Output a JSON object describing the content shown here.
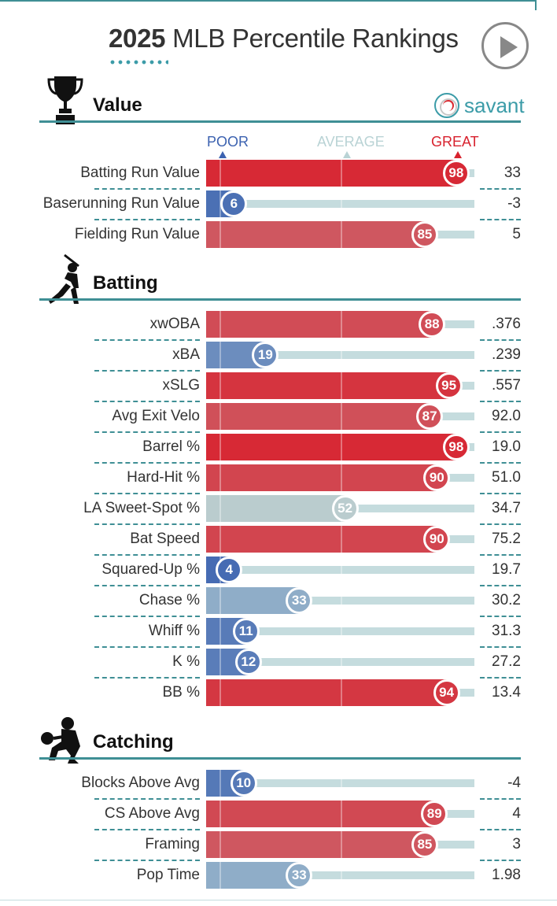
{
  "header": {
    "year": "2025",
    "title": "MLB Percentile Rankings",
    "play_icon": "play-icon"
  },
  "brand": {
    "name": "savant",
    "icon": "baseball-icon"
  },
  "legend": {
    "poor": "POOR",
    "average": "AVERAGE",
    "great": "GREAT"
  },
  "colors": {
    "great": "#d8222e",
    "average": "#b9d3d5",
    "poor": "#3c62b0",
    "track": "#c5dcde",
    "accent": "#3f8f95",
    "brand": "#3c9ca8"
  },
  "chart_data": {
    "type": "bar",
    "scale": [
      0,
      100
    ],
    "sections": [
      {
        "name": "Value",
        "icon": "trophy-icon",
        "metrics": [
          {
            "label": "Batting Run Value",
            "percentile": 98,
            "value": "33"
          },
          {
            "label": "Baserunning Run Value",
            "percentile": 6,
            "value": "-3"
          },
          {
            "label": "Fielding Run Value",
            "percentile": 85,
            "value": "5"
          }
        ]
      },
      {
        "name": "Batting",
        "icon": "batter-icon",
        "metrics": [
          {
            "label": "xwOBA",
            "percentile": 88,
            "value": ".376"
          },
          {
            "label": "xBA",
            "percentile": 19,
            "value": ".239"
          },
          {
            "label": "xSLG",
            "percentile": 95,
            "value": ".557"
          },
          {
            "label": "Avg Exit Velo",
            "percentile": 87,
            "value": "92.0"
          },
          {
            "label": "Barrel %",
            "percentile": 98,
            "value": "19.0"
          },
          {
            "label": "Hard-Hit %",
            "percentile": 90,
            "value": "51.0"
          },
          {
            "label": "LA Sweet-Spot %",
            "percentile": 52,
            "value": "34.7"
          },
          {
            "label": "Bat Speed",
            "percentile": 90,
            "value": "75.2"
          },
          {
            "label": "Squared-Up %",
            "percentile": 4,
            "value": "19.7"
          },
          {
            "label": "Chase %",
            "percentile": 33,
            "value": "30.2"
          },
          {
            "label": "Whiff %",
            "percentile": 11,
            "value": "31.3"
          },
          {
            "label": "K %",
            "percentile": 12,
            "value": "27.2"
          },
          {
            "label": "BB %",
            "percentile": 94,
            "value": "13.4"
          }
        ]
      },
      {
        "name": "Catching",
        "icon": "catcher-icon",
        "metrics": [
          {
            "label": "Blocks Above Avg",
            "percentile": 10,
            "value": "-4"
          },
          {
            "label": "CS Above Avg",
            "percentile": 89,
            "value": "4"
          },
          {
            "label": "Framing",
            "percentile": 85,
            "value": "3"
          },
          {
            "label": "Pop Time",
            "percentile": 33,
            "value": "1.98"
          }
        ]
      }
    ]
  }
}
